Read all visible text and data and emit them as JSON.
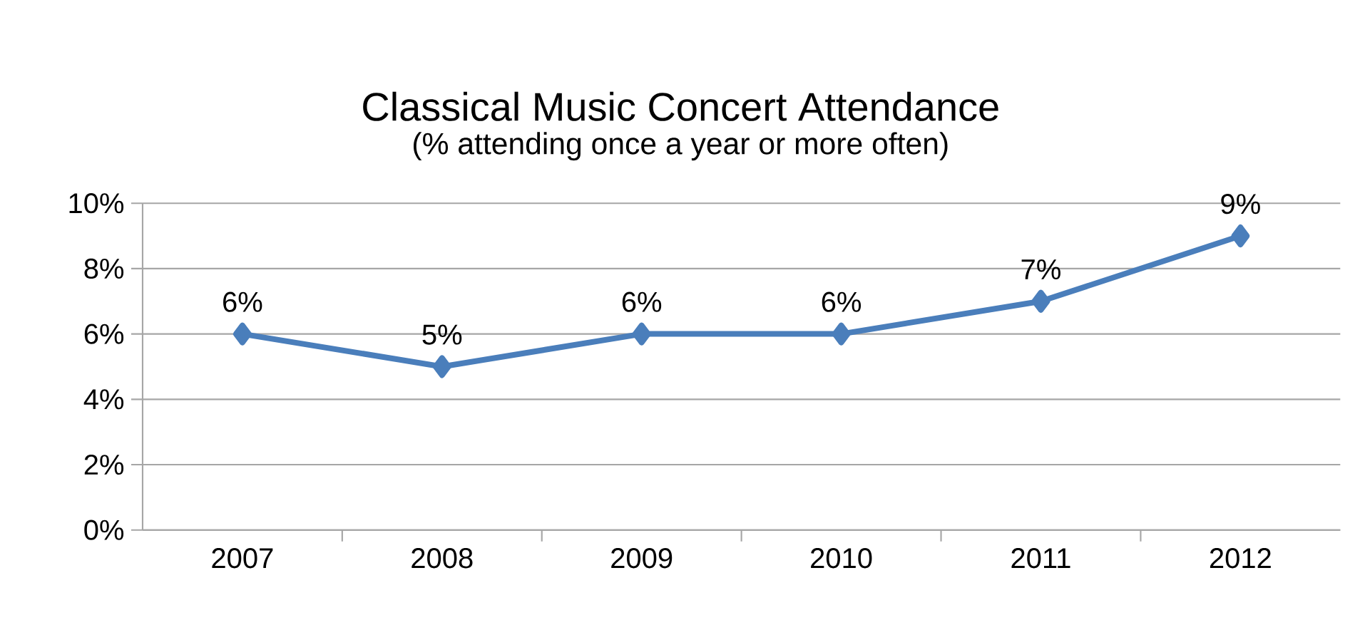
{
  "chart_data": {
    "type": "line",
    "title": "Classical Music Concert Attendance",
    "subtitle": "(% attending once a year or more often)",
    "categories": [
      "2007",
      "2008",
      "2009",
      "2010",
      "2011",
      "2012"
    ],
    "series": [
      {
        "color": "#4a7ebb",
        "values": [
          6,
          5,
          6,
          6,
          7,
          9
        ],
        "value_labels": [
          "6%",
          "5%",
          "6%",
          "6%",
          "7%",
          "9%"
        ]
      }
    ],
    "ylim": [
      0,
      10
    ],
    "yticks": [
      {
        "value": 0,
        "label": "0%"
      },
      {
        "value": 2,
        "label": "2%"
      },
      {
        "value": 4,
        "label": "4%"
      },
      {
        "value": 6,
        "label": "6%"
      },
      {
        "value": 8,
        "label": "8%"
      },
      {
        "value": 10,
        "label": "10%"
      }
    ],
    "grid": "y",
    "marker": "diamond",
    "line_style": "solid"
  }
}
